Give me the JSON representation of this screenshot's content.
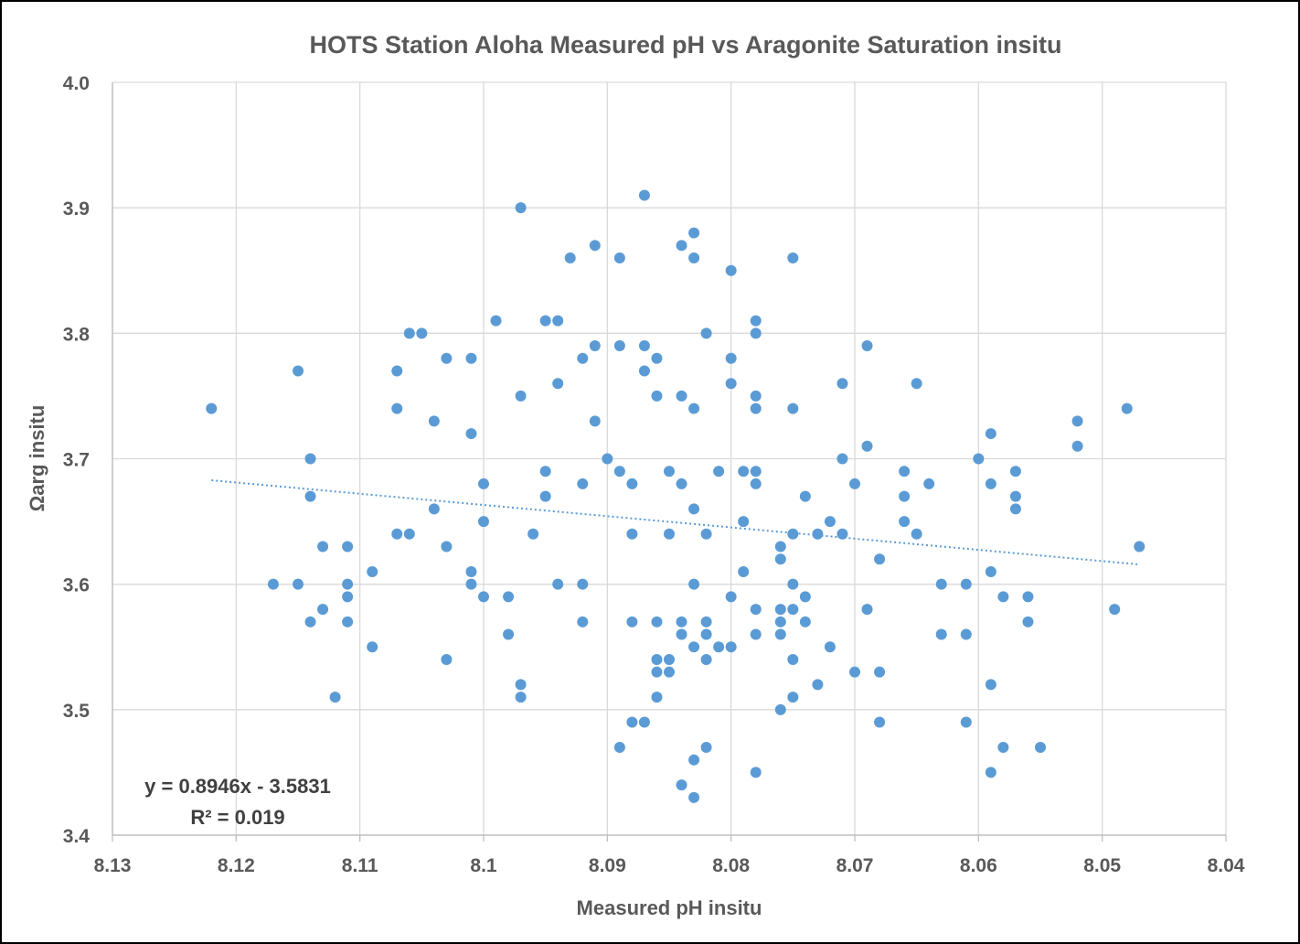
{
  "chart_data": {
    "type": "scatter",
    "title": "HOTS Station Aloha Measured pH vs Aragonite Saturation insitu",
    "xlabel": "Measured pH insitu",
    "ylabel": "Ωarg insitu",
    "xlim": [
      8.13,
      8.04
    ],
    "x_reversed": true,
    "ylim": [
      3.4,
      4.0
    ],
    "xticks": [
      8.13,
      8.12,
      8.11,
      8.1,
      8.09,
      8.08,
      8.07,
      8.06,
      8.05,
      8.04
    ],
    "xtick_labels": [
      "8.13",
      "8.12",
      "8.11",
      "8.1",
      "8.09",
      "8.08",
      "8.07",
      "8.06",
      "8.05",
      "8.04"
    ],
    "yticks": [
      3.4,
      3.5,
      3.6,
      3.7,
      3.8,
      3.9,
      4.0
    ],
    "ytick_labels": [
      "3.4",
      "3.5",
      "3.6",
      "3.7",
      "3.8",
      "3.9",
      "4.0"
    ],
    "grid": true,
    "legend": "none",
    "marker_color": "#5b9bd5",
    "trendline": {
      "type": "linear",
      "style": "dotted",
      "color": "#5b9bd5",
      "slope": 0.8946,
      "intercept": -3.5831,
      "x_range": [
        8.122,
        8.047
      ],
      "equation_text": "y = 0.8946x - 3.5831",
      "r2_text": "R² = 0.019"
    },
    "points": [
      [
        8.122,
        3.74
      ],
      [
        8.117,
        3.6
      ],
      [
        8.115,
        3.77
      ],
      [
        8.115,
        3.6
      ],
      [
        8.114,
        3.7
      ],
      [
        8.114,
        3.67
      ],
      [
        8.114,
        3.57
      ],
      [
        8.113,
        3.63
      ],
      [
        8.113,
        3.58
      ],
      [
        8.112,
        3.51
      ],
      [
        8.111,
        3.63
      ],
      [
        8.111,
        3.6
      ],
      [
        8.111,
        3.59
      ],
      [
        8.111,
        3.57
      ],
      [
        8.109,
        3.61
      ],
      [
        8.109,
        3.55
      ],
      [
        8.107,
        3.77
      ],
      [
        8.107,
        3.74
      ],
      [
        8.107,
        3.64
      ],
      [
        8.106,
        3.8
      ],
      [
        8.106,
        3.64
      ],
      [
        8.105,
        3.8
      ],
      [
        8.104,
        3.73
      ],
      [
        8.104,
        3.66
      ],
      [
        8.103,
        3.78
      ],
      [
        8.103,
        3.63
      ],
      [
        8.103,
        3.54
      ],
      [
        8.101,
        3.78
      ],
      [
        8.101,
        3.72
      ],
      [
        8.101,
        3.61
      ],
      [
        8.101,
        3.6
      ],
      [
        8.1,
        3.68
      ],
      [
        8.1,
        3.65
      ],
      [
        8.1,
        3.59
      ],
      [
        8.099,
        3.81
      ],
      [
        8.098,
        3.59
      ],
      [
        8.098,
        3.56
      ],
      [
        8.097,
        3.9
      ],
      [
        8.097,
        3.75
      ],
      [
        8.097,
        3.52
      ],
      [
        8.097,
        3.51
      ],
      [
        8.096,
        3.64
      ],
      [
        8.095,
        3.81
      ],
      [
        8.095,
        3.69
      ],
      [
        8.095,
        3.67
      ],
      [
        8.094,
        3.81
      ],
      [
        8.094,
        3.76
      ],
      [
        8.094,
        3.6
      ],
      [
        8.093,
        3.86
      ],
      [
        8.092,
        3.78
      ],
      [
        8.092,
        3.68
      ],
      [
        8.092,
        3.6
      ],
      [
        8.092,
        3.57
      ],
      [
        8.091,
        3.87
      ],
      [
        8.091,
        3.79
      ],
      [
        8.091,
        3.73
      ],
      [
        8.09,
        3.7
      ],
      [
        8.089,
        3.86
      ],
      [
        8.089,
        3.79
      ],
      [
        8.089,
        3.69
      ],
      [
        8.089,
        3.47
      ],
      [
        8.088,
        3.68
      ],
      [
        8.088,
        3.64
      ],
      [
        8.088,
        3.57
      ],
      [
        8.088,
        3.49
      ],
      [
        8.087,
        3.91
      ],
      [
        8.087,
        3.79
      ],
      [
        8.087,
        3.77
      ],
      [
        8.087,
        3.49
      ],
      [
        8.086,
        3.78
      ],
      [
        8.086,
        3.75
      ],
      [
        8.086,
        3.57
      ],
      [
        8.086,
        3.54
      ],
      [
        8.086,
        3.53
      ],
      [
        8.086,
        3.51
      ],
      [
        8.085,
        3.69
      ],
      [
        8.085,
        3.64
      ],
      [
        8.085,
        3.54
      ],
      [
        8.085,
        3.53
      ],
      [
        8.084,
        3.87
      ],
      [
        8.084,
        3.75
      ],
      [
        8.084,
        3.68
      ],
      [
        8.084,
        3.57
      ],
      [
        8.084,
        3.56
      ],
      [
        8.084,
        3.44
      ],
      [
        8.083,
        3.88
      ],
      [
        8.083,
        3.86
      ],
      [
        8.083,
        3.74
      ],
      [
        8.083,
        3.66
      ],
      [
        8.083,
        3.6
      ],
      [
        8.083,
        3.55
      ],
      [
        8.083,
        3.46
      ],
      [
        8.083,
        3.43
      ],
      [
        8.082,
        3.8
      ],
      [
        8.082,
        3.64
      ],
      [
        8.082,
        3.57
      ],
      [
        8.082,
        3.56
      ],
      [
        8.082,
        3.54
      ],
      [
        8.082,
        3.47
      ],
      [
        8.081,
        3.69
      ],
      [
        8.081,
        3.55
      ],
      [
        8.08,
        3.85
      ],
      [
        8.08,
        3.78
      ],
      [
        8.08,
        3.76
      ],
      [
        8.08,
        3.59
      ],
      [
        8.08,
        3.55
      ],
      [
        8.079,
        3.69
      ],
      [
        8.079,
        3.65
      ],
      [
        8.079,
        3.61
      ],
      [
        8.078,
        3.81
      ],
      [
        8.078,
        3.8
      ],
      [
        8.078,
        3.75
      ],
      [
        8.078,
        3.74
      ],
      [
        8.078,
        3.69
      ],
      [
        8.078,
        3.68
      ],
      [
        8.078,
        3.58
      ],
      [
        8.078,
        3.56
      ],
      [
        8.078,
        3.45
      ],
      [
        8.076,
        3.63
      ],
      [
        8.076,
        3.62
      ],
      [
        8.076,
        3.58
      ],
      [
        8.076,
        3.57
      ],
      [
        8.076,
        3.56
      ],
      [
        8.076,
        3.5
      ],
      [
        8.075,
        3.86
      ],
      [
        8.075,
        3.74
      ],
      [
        8.075,
        3.64
      ],
      [
        8.075,
        3.6
      ],
      [
        8.075,
        3.58
      ],
      [
        8.075,
        3.54
      ],
      [
        8.075,
        3.51
      ],
      [
        8.074,
        3.67
      ],
      [
        8.074,
        3.59
      ],
      [
        8.074,
        3.57
      ],
      [
        8.073,
        3.64
      ],
      [
        8.073,
        3.52
      ],
      [
        8.072,
        3.65
      ],
      [
        8.072,
        3.55
      ],
      [
        8.071,
        3.76
      ],
      [
        8.071,
        3.7
      ],
      [
        8.071,
        3.64
      ],
      [
        8.07,
        3.68
      ],
      [
        8.07,
        3.53
      ],
      [
        8.069,
        3.79
      ],
      [
        8.069,
        3.71
      ],
      [
        8.069,
        3.58
      ],
      [
        8.068,
        3.62
      ],
      [
        8.068,
        3.53
      ],
      [
        8.068,
        3.49
      ],
      [
        8.066,
        3.69
      ],
      [
        8.066,
        3.67
      ],
      [
        8.066,
        3.65
      ],
      [
        8.065,
        3.76
      ],
      [
        8.065,
        3.64
      ],
      [
        8.064,
        3.68
      ],
      [
        8.063,
        3.6
      ],
      [
        8.063,
        3.56
      ],
      [
        8.061,
        3.6
      ],
      [
        8.061,
        3.56
      ],
      [
        8.061,
        3.49
      ],
      [
        8.06,
        3.7
      ],
      [
        8.059,
        3.72
      ],
      [
        8.059,
        3.68
      ],
      [
        8.059,
        3.61
      ],
      [
        8.059,
        3.52
      ],
      [
        8.059,
        3.45
      ],
      [
        8.058,
        3.59
      ],
      [
        8.058,
        3.47
      ],
      [
        8.057,
        3.69
      ],
      [
        8.057,
        3.67
      ],
      [
        8.057,
        3.66
      ],
      [
        8.056,
        3.59
      ],
      [
        8.056,
        3.57
      ],
      [
        8.055,
        3.47
      ],
      [
        8.052,
        3.73
      ],
      [
        8.052,
        3.71
      ],
      [
        8.049,
        3.58
      ],
      [
        8.048,
        3.74
      ],
      [
        8.047,
        3.63
      ]
    ]
  }
}
